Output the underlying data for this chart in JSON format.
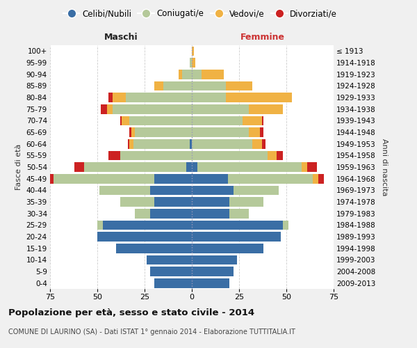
{
  "age_groups": [
    "0-4",
    "5-9",
    "10-14",
    "15-19",
    "20-24",
    "25-29",
    "30-34",
    "35-39",
    "40-44",
    "45-49",
    "50-54",
    "55-59",
    "60-64",
    "65-69",
    "70-74",
    "75-79",
    "80-84",
    "85-89",
    "90-94",
    "95-99",
    "100+"
  ],
  "birth_years": [
    "2009-2013",
    "2004-2008",
    "1999-2003",
    "1994-1998",
    "1989-1993",
    "1984-1988",
    "1979-1983",
    "1974-1978",
    "1969-1973",
    "1964-1968",
    "1959-1963",
    "1954-1958",
    "1949-1953",
    "1944-1948",
    "1939-1943",
    "1934-1938",
    "1929-1933",
    "1924-1928",
    "1919-1923",
    "1914-1918",
    "≤ 1913"
  ],
  "males": {
    "celibe": [
      20,
      22,
      24,
      40,
      50,
      47,
      22,
      20,
      22,
      20,
      3,
      0,
      1,
      0,
      0,
      0,
      0,
      0,
      0,
      0,
      0
    ],
    "coniugato": [
      0,
      0,
      0,
      0,
      0,
      3,
      8,
      18,
      27,
      53,
      54,
      38,
      30,
      30,
      33,
      42,
      35,
      15,
      5,
      1,
      0
    ],
    "vedovo": [
      0,
      0,
      0,
      0,
      0,
      0,
      0,
      0,
      0,
      0,
      0,
      0,
      2,
      2,
      4,
      3,
      7,
      5,
      2,
      0,
      0
    ],
    "divorziato": [
      0,
      0,
      0,
      0,
      0,
      0,
      0,
      0,
      0,
      3,
      5,
      6,
      1,
      1,
      1,
      3,
      2,
      0,
      0,
      0,
      0
    ]
  },
  "females": {
    "nubile": [
      20,
      22,
      24,
      38,
      47,
      48,
      20,
      20,
      22,
      19,
      3,
      0,
      0,
      0,
      0,
      0,
      0,
      0,
      0,
      0,
      0
    ],
    "coniugata": [
      0,
      0,
      0,
      0,
      0,
      3,
      10,
      18,
      24,
      45,
      55,
      40,
      32,
      30,
      27,
      30,
      18,
      18,
      5,
      0,
      0
    ],
    "vedova": [
      0,
      0,
      0,
      0,
      0,
      0,
      0,
      0,
      0,
      3,
      3,
      5,
      5,
      6,
      10,
      18,
      35,
      14,
      12,
      2,
      1
    ],
    "divorziata": [
      0,
      0,
      0,
      0,
      0,
      0,
      0,
      0,
      0,
      3,
      5,
      3,
      2,
      2,
      1,
      0,
      0,
      0,
      0,
      0,
      0
    ]
  },
  "colors": {
    "celibe": "#3a6ea5",
    "coniugato": "#b5c99a",
    "vedovo": "#f0b244",
    "divorziato": "#cc2222"
  },
  "xlim": 75,
  "title": "Popolazione per età, sesso e stato civile - 2014",
  "subtitle": "COMUNE DI LAURINO (SA) - Dati ISTAT 1° gennaio 2014 - Elaborazione TUTTITALIA.IT",
  "ylabel_left": "Fasce di età",
  "ylabel_right": "Anni di nascita",
  "label_maschi": "Maschi",
  "label_femmine": "Femmine",
  "legend_labels": [
    "Celibi/Nubili",
    "Coniugati/e",
    "Vedovi/e",
    "Divorziati/e"
  ],
  "bg_color": "#f0f0f0",
  "plot_bg_color": "#ffffff",
  "grid_color": "#cccccc"
}
